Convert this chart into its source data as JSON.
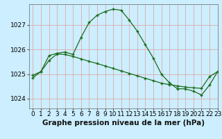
{
  "title": "Graphe pression niveau de la mer (hPa)",
  "bg_color": "#cceeff",
  "grid_color": "#ddaaaa",
  "line_color": "#1a6b1a",
  "xlim": [
    -0.5,
    23
  ],
  "ylim": [
    1023.6,
    1027.85
  ],
  "yticks": [
    1024,
    1025,
    1026,
    1027
  ],
  "xticks": [
    0,
    1,
    2,
    3,
    4,
    5,
    6,
    7,
    8,
    9,
    10,
    11,
    12,
    13,
    14,
    15,
    16,
    17,
    18,
    19,
    20,
    21,
    22,
    23
  ],
  "curve1_x": [
    0,
    1,
    2,
    3,
    4,
    5,
    6,
    7,
    8,
    9,
    10,
    11,
    12,
    13,
    14,
    15,
    16,
    17,
    18,
    19,
    20,
    21,
    22,
    23
  ],
  "curve1_y": [
    1024.85,
    1025.1,
    1025.75,
    1025.85,
    1025.9,
    1025.8,
    1026.5,
    1027.1,
    1027.4,
    1027.55,
    1027.65,
    1027.6,
    1027.2,
    1026.75,
    1026.2,
    1025.65,
    1025.0,
    1024.65,
    1024.4,
    1024.4,
    1024.3,
    1024.15,
    1024.55,
    1025.1
  ],
  "curve2_x": [
    0,
    1,
    2,
    3,
    4,
    5,
    6,
    7,
    8,
    9,
    10,
    11,
    12,
    13,
    14,
    15,
    16,
    17,
    18,
    19,
    20,
    21,
    22,
    23
  ],
  "curve2_y": [
    1024.95,
    1025.1,
    1025.55,
    1025.82,
    1025.8,
    1025.72,
    1025.62,
    1025.52,
    1025.43,
    1025.33,
    1025.23,
    1025.13,
    1025.03,
    1024.93,
    1024.83,
    1024.73,
    1024.63,
    1024.57,
    1024.52,
    1024.47,
    1024.44,
    1024.42,
    1024.9,
    1025.1
  ],
  "tick_fontsize": 6.5,
  "title_fontsize": 7.5,
  "marker": "+"
}
